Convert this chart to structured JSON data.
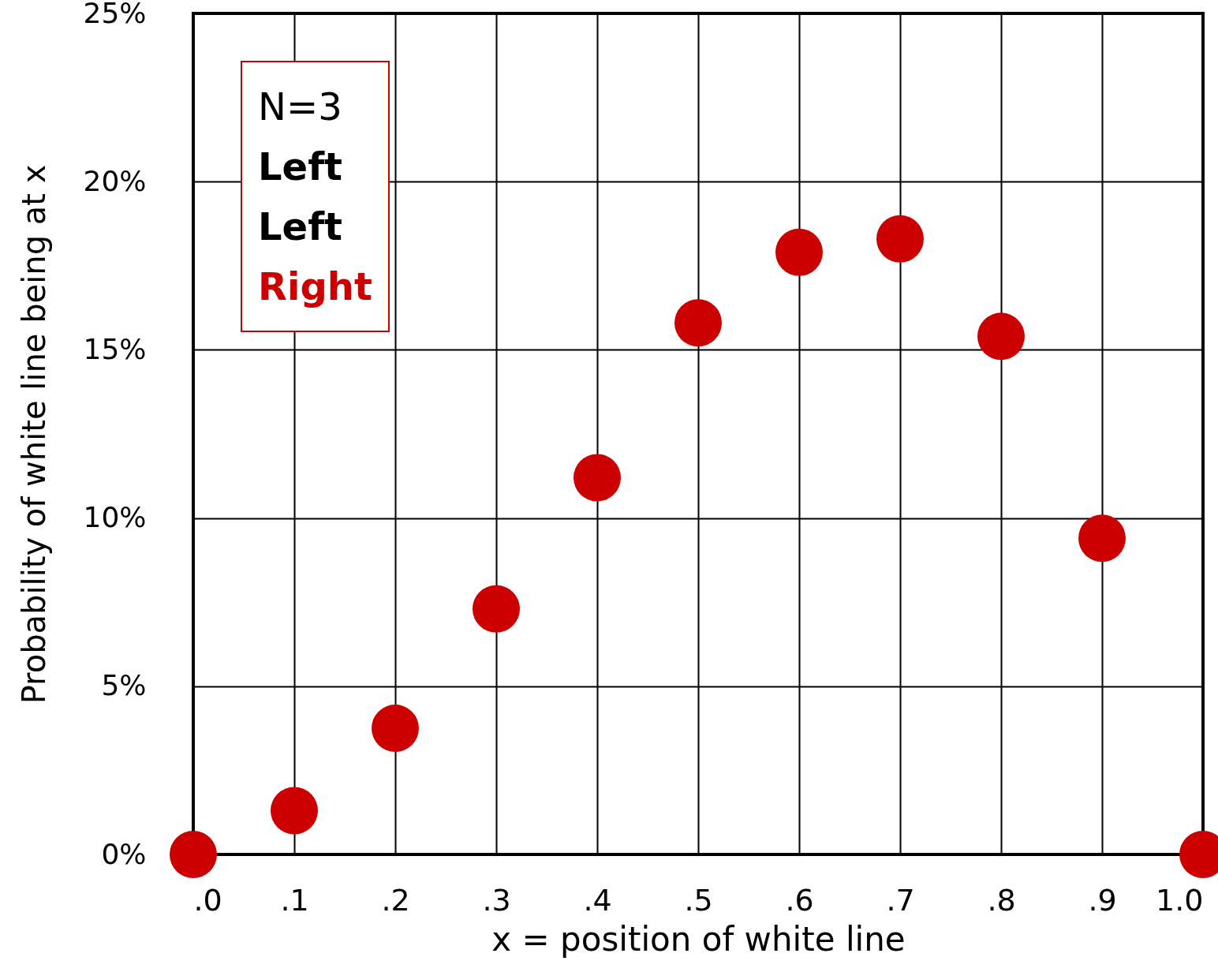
{
  "chart_data": {
    "type": "scatter",
    "xlabel": "x = position of white line",
    "ylabel": "Probability of white line being at x",
    "x": [
      0,
      0.1,
      0.2,
      0.3,
      0.4,
      0.5,
      0.6,
      0.7,
      0.8,
      0.9,
      1.0
    ],
    "series": [
      {
        "color": "#cc0000",
        "values": [
          0,
          1.3,
          3.75,
          7.3,
          11.2,
          15.8,
          17.9,
          18.3,
          15.4,
          9.4,
          0
        ]
      }
    ],
    "xlim": [
      0,
      1
    ],
    "xticks": [
      {
        "value": 0,
        "label": ".0"
      },
      {
        "value": 0.1,
        "label": ".1"
      },
      {
        "value": 0.2,
        "label": ".2"
      },
      {
        "value": 0.3,
        "label": ".3"
      },
      {
        "value": 0.4,
        "label": ".4"
      },
      {
        "value": 0.5,
        "label": ".5"
      },
      {
        "value": 0.6,
        "label": ".6"
      },
      {
        "value": 0.7,
        "label": ".7"
      },
      {
        "value": 0.8,
        "label": ".8"
      },
      {
        "value": 0.9,
        "label": ".9"
      },
      {
        "value": 1,
        "label": "1.0"
      }
    ],
    "ylim": [
      0,
      25
    ],
    "yticks": [
      {
        "value": 0,
        "label": "0%"
      },
      {
        "value": 5,
        "label": "5%"
      },
      {
        "value": 10,
        "label": "10%"
      },
      {
        "value": 15,
        "label": "15%"
      },
      {
        "value": 20,
        "label": "20%"
      },
      {
        "value": 25,
        "label": "25%"
      }
    ],
    "annotations": [
      "N=3",
      "Left",
      "Left",
      "Right"
    ],
    "grid": true,
    "marker": "circle"
  }
}
